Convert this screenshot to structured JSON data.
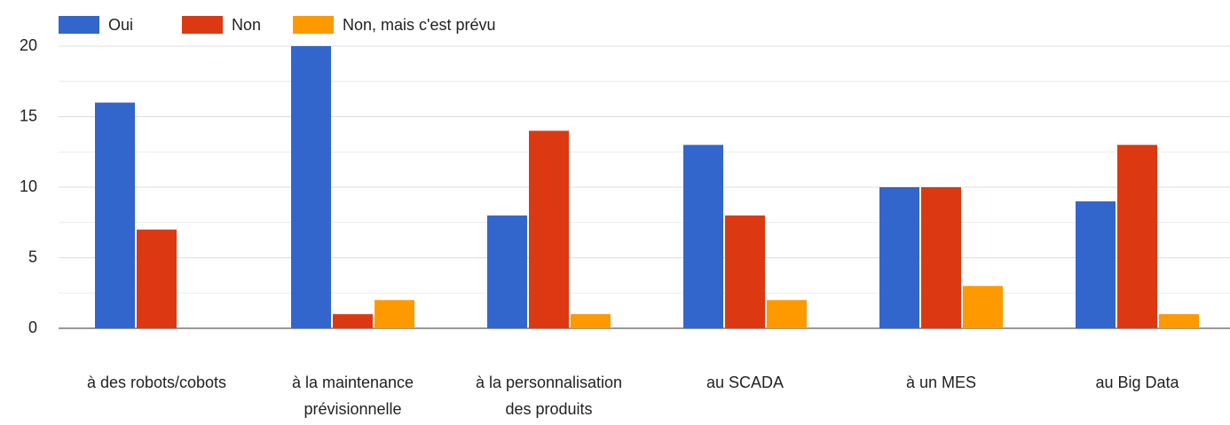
{
  "chart_data": {
    "type": "bar",
    "categories": [
      [
        "à des robots/cobots"
      ],
      [
        "à la maintenance",
        "prévisionnelle"
      ],
      [
        "à la personnalisation",
        "des produits"
      ],
      [
        "au SCADA"
      ],
      [
        "à un MES"
      ],
      [
        "au Big Data"
      ]
    ],
    "series": [
      {
        "name": "Oui",
        "color": "#3366cc",
        "values": [
          16,
          20,
          8,
          13,
          10,
          9
        ]
      },
      {
        "name": "Non",
        "color": "#dc3912",
        "values": [
          7,
          1,
          14,
          8,
          10,
          13
        ]
      },
      {
        "name": "Non, mais c'est prévu",
        "color": "#ff9900",
        "values": [
          0,
          2,
          1,
          2,
          3,
          1
        ]
      }
    ],
    "ylim": [
      0,
      20
    ],
    "yticks": [
      0,
      5,
      10,
      15,
      20
    ],
    "grid": true,
    "legend": "top"
  }
}
